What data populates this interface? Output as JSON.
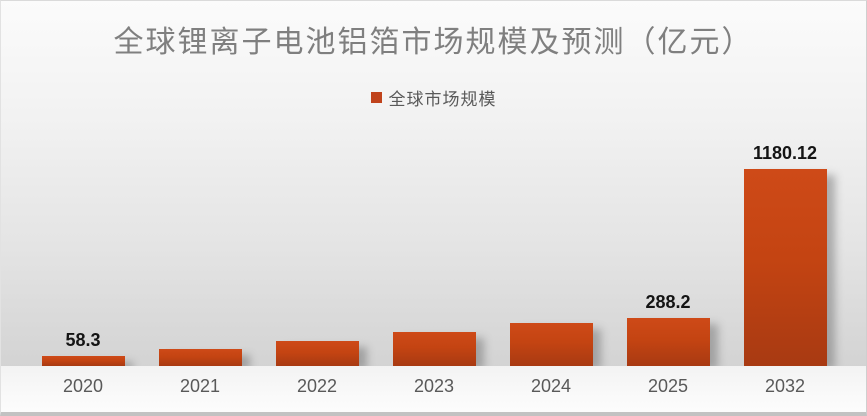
{
  "chart_data": {
    "type": "bar",
    "title": "全球锂离子电池铝箔市场规模及预测（亿元）",
    "legend": [
      {
        "label": "全球市场规模",
        "color": "#c0431c"
      }
    ],
    "categories": [
      "2020",
      "2021",
      "2022",
      "2023",
      "2024",
      "2025",
      "2032"
    ],
    "series": [
      {
        "name": "全球市场规模",
        "values": [
          58.3,
          102,
          150,
          205,
          257,
          288.2,
          1180.12
        ]
      }
    ],
    "data_labels": [
      "58.3",
      "",
      "",
      "",
      "",
      "288.2",
      "1180.12"
    ],
    "xlabel": "",
    "ylabel": "",
    "ylim": [
      0,
      1250
    ],
    "grid": false,
    "legend_position": "top-center",
    "colors": {
      "bar_top": "#ce4a18",
      "bar_bottom": "#a83a12",
      "accent": "#c0431c",
      "title_text": "#7f7f7f",
      "axis_text": "#595959",
      "data_label_text": "#141414"
    }
  }
}
